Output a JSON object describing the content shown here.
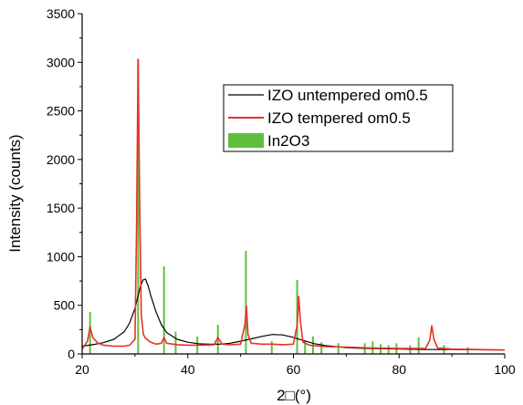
{
  "chart_data": {
    "type": "line",
    "title": "",
    "xlabel": "2□(°)",
    "ylabel": "Intensity (counts)",
    "xlim": [
      20,
      100
    ],
    "ylim": [
      0,
      3500
    ],
    "x_ticks": [
      20,
      40,
      60,
      80,
      100
    ],
    "y_ticks": [
      0,
      500,
      1000,
      1500,
      2000,
      2500,
      3000,
      3500
    ],
    "grid": false,
    "legend_position": "top-right",
    "legend": [
      {
        "label": "IZO untempered om0.5",
        "color": "#000000",
        "kind": "line"
      },
      {
        "label": "IZO tempered om0.5",
        "color": "#e8312a",
        "kind": "line"
      },
      {
        "label": "In2O3",
        "color": "#5fbf3c",
        "kind": "bar"
      }
    ],
    "series": [
      {
        "name": "IZO untempered om0.5",
        "color": "#000000",
        "x": [
          20,
          22,
          24,
          26,
          28,
          29,
          30,
          31,
          31.5,
          32,
          32.5,
          33,
          34,
          35,
          36,
          38,
          40,
          42,
          44,
          46,
          48,
          50,
          52,
          54,
          56,
          58,
          60,
          62,
          64,
          66,
          68,
          70,
          72,
          75,
          80,
          85,
          90,
          95,
          100
        ],
        "y": [
          80,
          95,
          115,
          150,
          230,
          320,
          470,
          690,
          760,
          770,
          700,
          600,
          430,
          300,
          220,
          150,
          120,
          105,
          100,
          100,
          110,
          130,
          155,
          180,
          200,
          195,
          170,
          135,
          105,
          85,
          75,
          65,
          60,
          55,
          50,
          45,
          45,
          42,
          40
        ]
      },
      {
        "name": "IZO tempered om0.5",
        "color": "#e8312a",
        "x": [
          20,
          21,
          21.5,
          22,
          23,
          24,
          25,
          26,
          28,
          29,
          30,
          30.3,
          30.6,
          30.9,
          31.2,
          31.6,
          32,
          33,
          34,
          35,
          35.5,
          36,
          38,
          40,
          42,
          45,
          45.7,
          46.5,
          48,
          50,
          50.8,
          51.1,
          51.4,
          52,
          54,
          56,
          58,
          60,
          60.7,
          61,
          61.3,
          61.8,
          63,
          66,
          70,
          75,
          80,
          85,
          85.8,
          86.2,
          86.6,
          87.3,
          90,
          95,
          100
        ],
        "y": [
          50,
          130,
          280,
          170,
          110,
          90,
          85,
          80,
          80,
          90,
          150,
          1300,
          3030,
          1500,
          400,
          200,
          160,
          120,
          100,
          110,
          170,
          110,
          95,
          90,
          90,
          95,
          170,
          100,
          95,
          100,
          300,
          490,
          200,
          110,
          100,
          100,
          95,
          100,
          300,
          590,
          350,
          120,
          90,
          75,
          70,
          60,
          55,
          55,
          140,
          290,
          150,
          60,
          50,
          45,
          40
        ]
      }
    ],
    "bars": {
      "name": "In2O3",
      "color": "#5fbf3c",
      "x": [
        21.5,
        30.6,
        35.5,
        37.7,
        41.8,
        45.7,
        51.0,
        55.9,
        60.7,
        62.2,
        63.7,
        65.3,
        68.5,
        73.5,
        75.0,
        76.5,
        78.0,
        79.5,
        82.1,
        83.7,
        88.5,
        93.0
      ],
      "y": [
        430,
        3030,
        900,
        230,
        180,
        300,
        1060,
        130,
        760,
        140,
        180,
        120,
        110,
        110,
        130,
        100,
        90,
        110,
        90,
        170,
        90,
        70
      ]
    }
  }
}
